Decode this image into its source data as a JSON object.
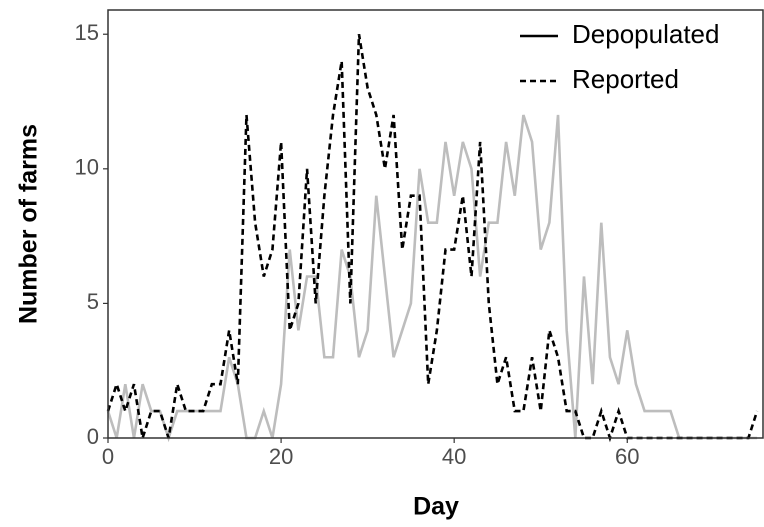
{
  "chart_data": {
    "type": "line",
    "x_label": "Day",
    "y_label": "Number of farms",
    "x": [
      0,
      1,
      2,
      3,
      4,
      5,
      6,
      7,
      8,
      9,
      10,
      11,
      12,
      13,
      14,
      15,
      16,
      17,
      18,
      19,
      20,
      21,
      22,
      23,
      24,
      25,
      26,
      27,
      28,
      29,
      30,
      31,
      32,
      33,
      34,
      35,
      36,
      37,
      38,
      39,
      40,
      41,
      42,
      43,
      44,
      45,
      46,
      47,
      48,
      49,
      50,
      51,
      52,
      53,
      54,
      55,
      56,
      57,
      58,
      59,
      60,
      61,
      62,
      63,
      64,
      65,
      66,
      67,
      68,
      69,
      70,
      71,
      72,
      73,
      74,
      75
    ],
    "series": [
      {
        "name": "Depopulated",
        "color": "#bdbdbd",
        "dash": "solid",
        "values": [
          1,
          0,
          2,
          0,
          2,
          1,
          1,
          0,
          1,
          1,
          1,
          1,
          1,
          1,
          3,
          2,
          0,
          0,
          1,
          0,
          2,
          7,
          4,
          6,
          6,
          3,
          3,
          7,
          6,
          3,
          4,
          9,
          6,
          3,
          4,
          5,
          10,
          8,
          8,
          11,
          9,
          11,
          10,
          6,
          8,
          8,
          11,
          9,
          12,
          11,
          7,
          8,
          12,
          4,
          0,
          6,
          2,
          8,
          3,
          2,
          4,
          2,
          1,
          1,
          1,
          1,
          0,
          0,
          0,
          0,
          0,
          0,
          0,
          0,
          0,
          0
        ]
      },
      {
        "name": "Reported",
        "color": "#000000",
        "dash": "dashed",
        "values": [
          1,
          2,
          1,
          2,
          0,
          1,
          1,
          0,
          2,
          1,
          1,
          1,
          2,
          2,
          4,
          2,
          12,
          8,
          6,
          7,
          11,
          4,
          5,
          10,
          5,
          9,
          12,
          14,
          5,
          15,
          13,
          12,
          10,
          12,
          7,
          9,
          9,
          2,
          4,
          7,
          7,
          9,
          6,
          11,
          5,
          2,
          3,
          1,
          1,
          3,
          1,
          4,
          3,
          1,
          1,
          0,
          0,
          1,
          0,
          1,
          0,
          0,
          0,
          0,
          0,
          0,
          0,
          0,
          0,
          0,
          0,
          0,
          0,
          0,
          0,
          1
        ]
      }
    ],
    "xlim": [
      0,
      75.8
    ],
    "ylim": [
      0,
      15.9
    ],
    "xticks": [
      0,
      20,
      40,
      60
    ],
    "yticks": [
      0,
      5,
      10,
      15
    ],
    "grid": false,
    "legend_position": "top-right"
  }
}
